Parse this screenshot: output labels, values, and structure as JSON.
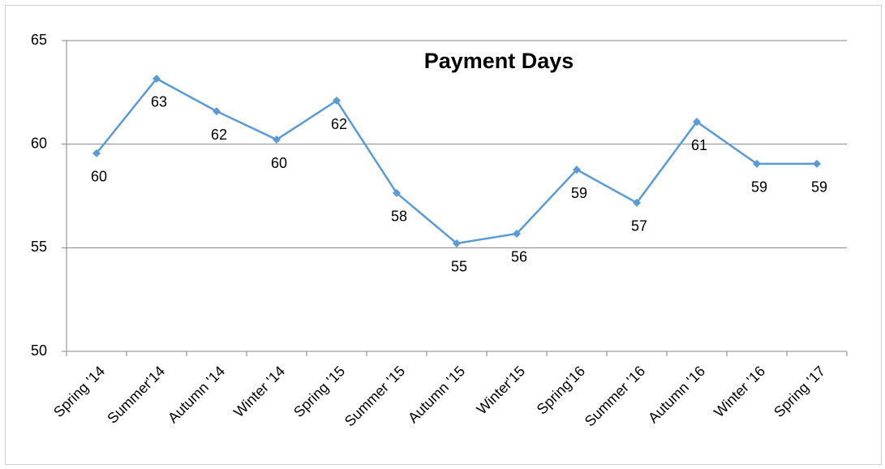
{
  "chart_data": {
    "type": "line",
    "title": "Payment Days",
    "categories": [
      "Spring '14",
      "Summer'14",
      "Autumn '14",
      "Winter '14",
      "Spring '15",
      "Summer '15",
      "Autumn '15",
      "Winter'15",
      "Spring'16",
      "Summer '16",
      "Autumn '16",
      "Winter '16",
      "Spring '17"
    ],
    "values": [
      59.56,
      63.16,
      61.59,
      60.22,
      62.1,
      57.64,
      55.21,
      55.68,
      58.77,
      57.17,
      61.08,
      59.05,
      59.05
    ],
    "value_labels": [
      "60",
      "63",
      "62",
      "60",
      "62",
      "58",
      "55",
      "56",
      "59",
      "57",
      "61",
      "59",
      "59"
    ],
    "color": "#5b9bd5",
    "ylim": [
      50,
      65
    ],
    "yticks": [
      50,
      55,
      60,
      65
    ],
    "grid": true
  }
}
